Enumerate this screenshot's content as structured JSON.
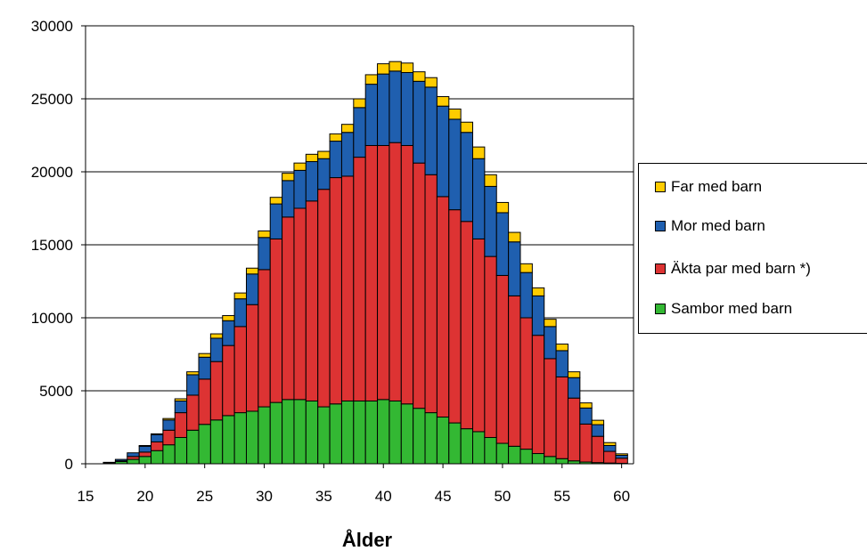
{
  "chart_data": {
    "type": "bar",
    "stacked": true,
    "xlabel": "Ålder",
    "ylabel": "",
    "ylim": [
      0,
      30000
    ],
    "yticks": [
      0,
      5000,
      10000,
      15000,
      20000,
      25000,
      30000
    ],
    "xlim": [
      15,
      61
    ],
    "xticks": [
      15,
      20,
      25,
      30,
      35,
      40,
      45,
      50,
      55,
      60
    ],
    "grid": true,
    "legend_position": "right",
    "categories": [
      17,
      18,
      19,
      20,
      21,
      22,
      23,
      24,
      25,
      26,
      27,
      28,
      29,
      30,
      31,
      32,
      33,
      34,
      35,
      36,
      37,
      38,
      39,
      40,
      41,
      42,
      43,
      44,
      45,
      46,
      47,
      48,
      49,
      50,
      51,
      52,
      53,
      54,
      55,
      56,
      57,
      58,
      59,
      60
    ],
    "series": [
      {
        "name": "Sambor med barn",
        "color": "#33b833",
        "values": [
          50,
          150,
          300,
          500,
          900,
          1300,
          1800,
          2300,
          2700,
          3000,
          3300,
          3500,
          3600,
          3900,
          4200,
          4400,
          4400,
          4300,
          3900,
          4100,
          4300,
          4300,
          4300,
          4400,
          4300,
          4100,
          3800,
          3500,
          3200,
          2800,
          2400,
          2200,
          1800,
          1400,
          1200,
          1000,
          700,
          500,
          350,
          200,
          120,
          80,
          50,
          30
        ]
      },
      {
        "name": "Äkta par med barn *)",
        "color": "#dd3333",
        "values": [
          30,
          50,
          200,
          300,
          600,
          1000,
          1700,
          2400,
          3100,
          4000,
          4800,
          5900,
          7300,
          9400,
          11200,
          12500,
          13100,
          13700,
          14900,
          15500,
          15400,
          16700,
          17500,
          17400,
          17700,
          17700,
          16800,
          16300,
          15100,
          14600,
          14200,
          13200,
          12400,
          11500,
          10300,
          9000,
          8100,
          6700,
          5600,
          4300,
          2600,
          1800,
          800,
          350
        ]
      },
      {
        "name": "Mor med barn",
        "color": "#1f5faf",
        "values": [
          20,
          100,
          250,
          400,
          500,
          700,
          800,
          1400,
          1500,
          1600,
          1700,
          1900,
          2100,
          2200,
          2400,
          2500,
          2600,
          2700,
          2100,
          2500,
          3000,
          3400,
          4200,
          4900,
          4900,
          5000,
          5600,
          6000,
          6200,
          6200,
          6100,
          5500,
          4800,
          4300,
          3700,
          3100,
          2700,
          2200,
          1800,
          1400,
          1100,
          800,
          400,
          200
        ]
      },
      {
        "name": "Far med barn",
        "color": "#ffcc00",
        "values": [
          0,
          0,
          0,
          50,
          50,
          100,
          150,
          200,
          250,
          300,
          350,
          400,
          400,
          450,
          450,
          500,
          500,
          500,
          500,
          500,
          550,
          600,
          650,
          700,
          650,
          650,
          650,
          650,
          650,
          700,
          700,
          800,
          800,
          700,
          650,
          600,
          550,
          500,
          450,
          400,
          350,
          300,
          200,
          100
        ]
      }
    ]
  }
}
